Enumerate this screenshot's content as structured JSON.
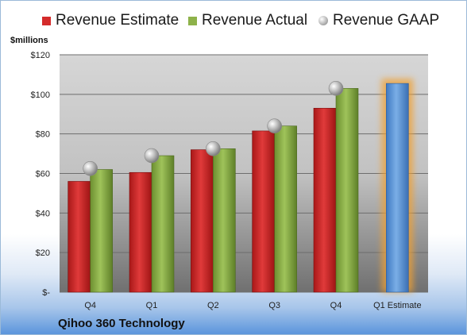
{
  "chart_data": {
    "type": "bar",
    "unit_label": "$millions",
    "caption": "Qihoo 360 Technology",
    "categories": [
      "Q4",
      "Q1",
      "Q2",
      "Q3",
      "Q4",
      "Q1 Estimate"
    ],
    "series": [
      {
        "name": "Revenue Estimate",
        "kind": "bar",
        "color": "#d42b2b",
        "values": [
          56,
          60.5,
          72,
          81.5,
          93,
          null
        ]
      },
      {
        "name": "Revenue Actual",
        "kind": "bar",
        "color": "#8eb24a",
        "values": [
          62,
          69,
          72.5,
          84,
          103,
          null
        ]
      },
      {
        "name": "Revenue GAAP",
        "kind": "marker",
        "color": "#a6a6a6",
        "values": [
          62.5,
          69,
          72.5,
          84,
          103,
          null
        ]
      },
      {
        "name": "Q1 Estimate",
        "kind": "bar",
        "color": "#5f96d8",
        "values": [
          null,
          null,
          null,
          null,
          null,
          105.5
        ]
      }
    ],
    "ylim": [
      0,
      120
    ],
    "yticks": [
      0,
      20,
      40,
      60,
      80,
      100,
      120
    ],
    "ytick_labels": [
      "$-",
      "$20",
      "$40",
      "$60",
      "$80",
      "$100",
      "$120"
    ],
    "grid": true,
    "legend_position": "top"
  }
}
